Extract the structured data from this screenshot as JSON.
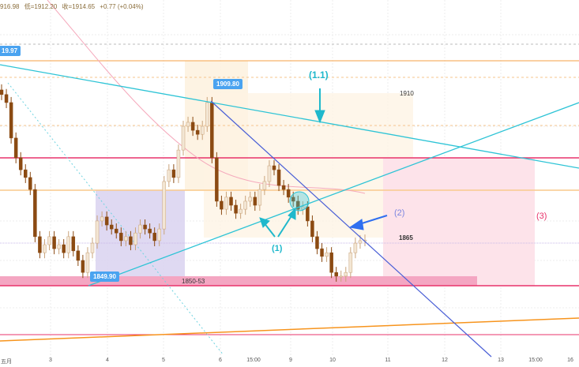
{
  "header": {
    "high_partial": "916.98",
    "low": "低=1912.20",
    "close": "收=1914.65",
    "change": "+0.77 (+0.04%)"
  },
  "chart_data": {
    "type": "candlestick",
    "closes": [
      1911.9,
      1909.3,
      1897.8,
      1891.4,
      1887.5,
      1885.0,
      1881.1,
      1865.8,
      1860.6,
      1863.2,
      1865.8,
      1861.9,
      1863.2,
      1860.6,
      1865.8,
      1861.2,
      1858.1,
      1854.2,
      1860.6,
      1863.7,
      1870.9,
      1872.2,
      1869.6,
      1868.3,
      1867.0,
      1864.5,
      1865.8,
      1863.2,
      1867.0,
      1869.6,
      1868.3,
      1867.0,
      1864.5,
      1868.3,
      1883.7,
      1887.5,
      1885.0,
      1893.9,
      1901.6,
      1902.9,
      1900.3,
      1899.0,
      1901.6,
      1909.3,
      1891.4,
      1877.3,
      1874.7,
      1878.6,
      1876.0,
      1873.4,
      1874.7,
      1877.3,
      1878.6,
      1876.0,
      1881.1,
      1883.7,
      1888.8,
      1887.5,
      1882.4,
      1881.1,
      1878.6,
      1877.3,
      1874.7,
      1875.5,
      1870.9,
      1865.8,
      1861.9,
      1859.4,
      1860.6,
      1854.2,
      1853.0,
      1853.0,
      1854.2,
      1860.6,
      1863.7,
      1864.5,
      1864.7
    ],
    "x_ticks": [
      "五月",
      "3",
      "4",
      "5",
      "6",
      "15:00",
      "9",
      "10",
      "11",
      "12",
      "13",
      "15:00",
      "16"
    ],
    "price_tags": [
      "19.97",
      "1909.80",
      "1849.90"
    ],
    "levels": {
      "level_1910": "1910",
      "level_1865": "1865",
      "zone": "1850-53"
    },
    "annotations": [
      "(1.1)",
      "(1)",
      "(2)",
      "(3)"
    ]
  },
  "colors": {
    "up": "#e9d9c4",
    "down": "#8b4a12",
    "cyan": "#2ec4d6",
    "blue": "#4a5fd6",
    "red": "#e8336b",
    "orange": "#f7941d"
  }
}
